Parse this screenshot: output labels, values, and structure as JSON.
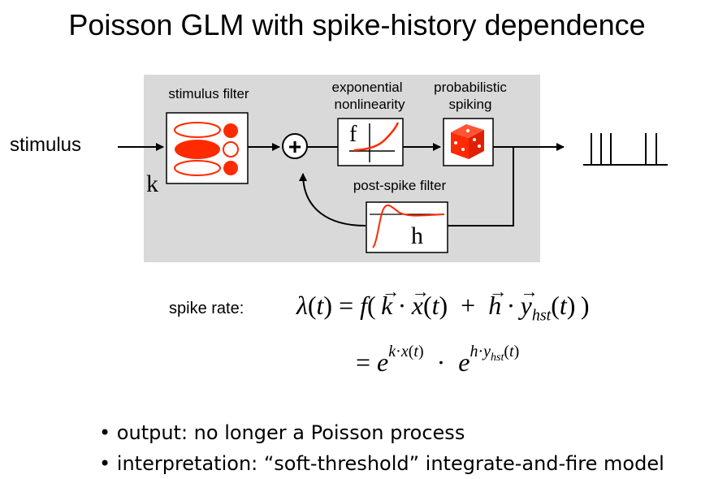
{
  "title": "Poisson GLM with spike-history dependence",
  "diagram": {
    "input_label": "stimulus",
    "stim_filter_label": "stimulus filter",
    "stim_filter_symbol": "k",
    "nonlin_label_line1": "exponential",
    "nonlin_label_line2": "nonlinearity",
    "nonlin_symbol": "f",
    "spiking_label_line1": "probabilistic",
    "spiking_label_line2": "spiking",
    "postspike_label": "post-spike filter",
    "postspike_symbol": "h",
    "sum_symbol": "+",
    "colors": {
      "panel": "#d9d9d9",
      "accent": "#ff2a00",
      "line": "#000000"
    },
    "icons": [
      "dice-icon",
      "spike-train-icon"
    ]
  },
  "equation": {
    "label": "spike rate:",
    "line1": "λ(t) = f( k · x(t) + h · yhst(t) )",
    "line2": "= e^(k·x(t)) · e^(h·yhst(t))"
  },
  "bullets": [
    "output: no longer a Poisson process",
    "interpretation: “soft-threshold” integrate-and-fire model"
  ]
}
